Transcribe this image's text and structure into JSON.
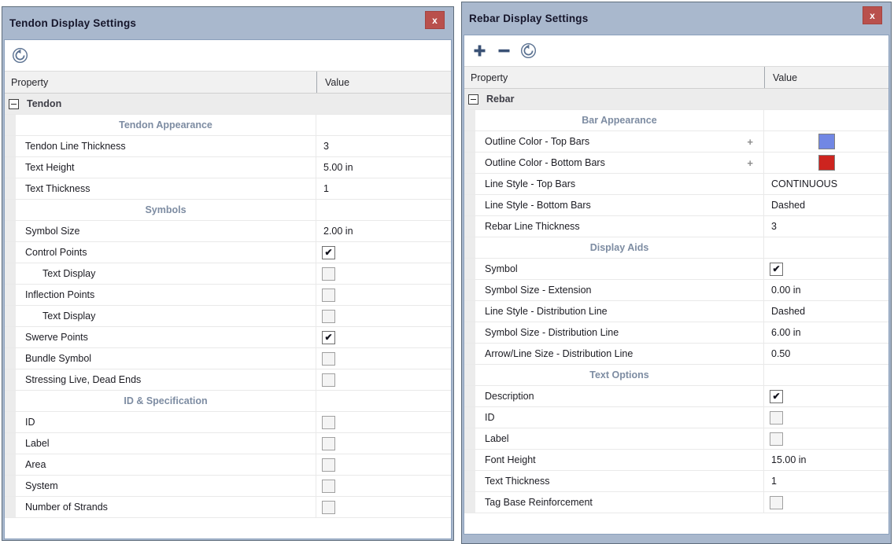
{
  "colors": {
    "titlebar": "#a9b8cd",
    "panel_border": "#5f6d7c",
    "client_border": "#8ba0bc",
    "close_button": "#b9504c",
    "header_bg": "#f1f1f1",
    "group_bg": "#ececec",
    "gridline": "#e9e9e9",
    "subheader_text": "#7d8ca2",
    "toolbar_icon": "#3a5175",
    "reset_icon": "#5a7191",
    "expander_plus": "#8c8c8c",
    "swatch_blue": "#7187e4",
    "swatch_red": "#cd241f",
    "checkmark": "#14141e"
  },
  "panels": [
    {
      "title": "Tendon Display Settings",
      "close_label": "x",
      "toolbar": [
        "reset"
      ],
      "columns": {
        "property": "Property",
        "value": "Value"
      },
      "group_label": "Tendon",
      "rows": [
        {
          "type": "subheader",
          "label": "Tendon Appearance"
        },
        {
          "type": "text",
          "label": "Tendon Line Thickness",
          "value": "3"
        },
        {
          "type": "text",
          "label": "Text Height",
          "value": "5.00 in"
        },
        {
          "type": "text",
          "label": "Text Thickness",
          "value": "1"
        },
        {
          "type": "subheader",
          "label": "Symbols"
        },
        {
          "type": "text",
          "label": "Symbol Size",
          "value": "2.00 in"
        },
        {
          "type": "checkbox",
          "label": "Control Points",
          "checked": true
        },
        {
          "type": "checkbox",
          "label": "Text Display",
          "checked": false,
          "indent": true
        },
        {
          "type": "checkbox",
          "label": "Inflection Points",
          "checked": false
        },
        {
          "type": "checkbox",
          "label": "Text Display",
          "checked": false,
          "indent": true
        },
        {
          "type": "checkbox",
          "label": "Swerve Points",
          "checked": true
        },
        {
          "type": "checkbox",
          "label": "Bundle Symbol",
          "checked": false
        },
        {
          "type": "checkbox",
          "label": "Stressing Live, Dead Ends",
          "checked": false
        },
        {
          "type": "subheader",
          "label": "ID & Specification"
        },
        {
          "type": "checkbox",
          "label": "ID",
          "checked": false
        },
        {
          "type": "checkbox",
          "label": "Label",
          "checked": false
        },
        {
          "type": "checkbox",
          "label": "Area",
          "checked": false
        },
        {
          "type": "checkbox",
          "label": "System",
          "checked": false
        },
        {
          "type": "checkbox",
          "label": "Number of Strands",
          "checked": false
        }
      ]
    },
    {
      "title": "Rebar Display Settings",
      "close_label": "x",
      "toolbar": [
        "plus",
        "minus",
        "reset"
      ],
      "columns": {
        "property": "Property",
        "value": "Value"
      },
      "group_label": "Rebar",
      "rows": [
        {
          "type": "subheader",
          "label": "Bar Appearance"
        },
        {
          "type": "color",
          "label": "Outline Color - Top Bars",
          "expander": "+",
          "color": "#7187e4"
        },
        {
          "type": "color",
          "label": "Outline Color - Bottom Bars",
          "expander": "+",
          "color": "#cd241f"
        },
        {
          "type": "text",
          "label": "Line Style - Top Bars",
          "value": "CONTINUOUS"
        },
        {
          "type": "text",
          "label": "Line Style - Bottom Bars",
          "value": "Dashed"
        },
        {
          "type": "text",
          "label": "Rebar Line Thickness",
          "value": "3"
        },
        {
          "type": "subheader",
          "label": "Display Aids"
        },
        {
          "type": "checkbox",
          "label": "Symbol",
          "checked": true
        },
        {
          "type": "text",
          "label": "Symbol Size - Extension",
          "value": "0.00 in"
        },
        {
          "type": "text",
          "label": "Line Style - Distribution Line",
          "value": "Dashed"
        },
        {
          "type": "text",
          "label": "Symbol Size - Distribution Line",
          "value": "6.00 in"
        },
        {
          "type": "text",
          "label": "Arrow/Line Size - Distribution Line",
          "value": "0.50"
        },
        {
          "type": "subheader",
          "label": "Text Options"
        },
        {
          "type": "checkbox",
          "label": "Description",
          "checked": true
        },
        {
          "type": "checkbox",
          "label": "ID",
          "checked": false
        },
        {
          "type": "checkbox",
          "label": "Label",
          "checked": false
        },
        {
          "type": "text",
          "label": "Font Height",
          "value": "15.00 in"
        },
        {
          "type": "text",
          "label": "Text Thickness",
          "value": "1"
        },
        {
          "type": "checkbox",
          "label": "Tag Base Reinforcement",
          "checked": false
        }
      ]
    }
  ]
}
